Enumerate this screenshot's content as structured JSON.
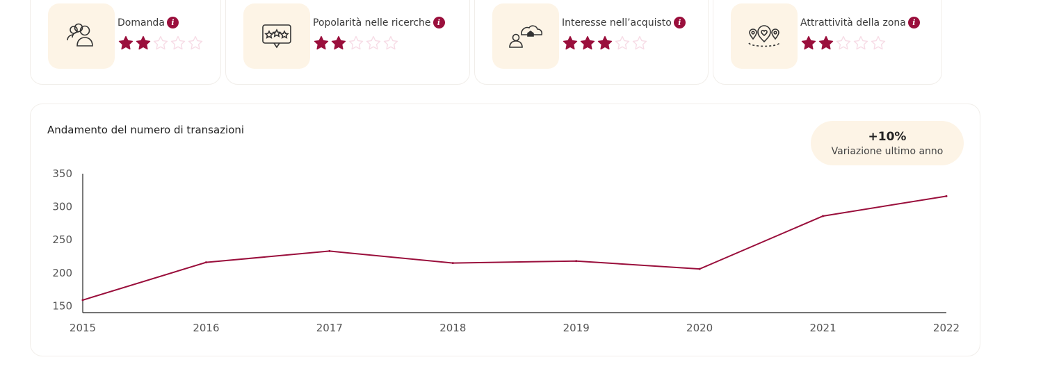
{
  "metrics": [
    {
      "label": "Domanda",
      "rating": 2,
      "max": 5,
      "icon": "people-group-icon"
    },
    {
      "label": "Popolarità nelle ricerche",
      "rating": 2,
      "max": 5,
      "icon": "rating-bubble-icon"
    },
    {
      "label": "Interesse nell’acquisto",
      "rating": 3,
      "max": 5,
      "icon": "person-house-cloud-icon"
    },
    {
      "label": "Attrattività della zona",
      "rating": 2,
      "max": 5,
      "icon": "location-heart-icon"
    }
  ],
  "info_symbol": "i",
  "colors": {
    "accent": "#9a0f3c",
    "star_empty": "#f7dce6",
    "icon_bg": "#fdf4e6"
  },
  "chart_data": {
    "type": "line",
    "title": "Andamento del numero di transazioni",
    "x": [
      "2015",
      "2016",
      "2017",
      "2018",
      "2019",
      "2020",
      "2021",
      "2022"
    ],
    "series": [
      {
        "values": [
          159,
          216,
          233,
          215,
          218,
          206,
          286,
          316
        ]
      }
    ],
    "yticks": [
      150,
      200,
      250,
      300,
      350
    ],
    "ylim": [
      140,
      350
    ],
    "grid": false,
    "legend": "none",
    "badge": {
      "value": "+10%",
      "caption": "Variazione ultimo anno"
    }
  }
}
